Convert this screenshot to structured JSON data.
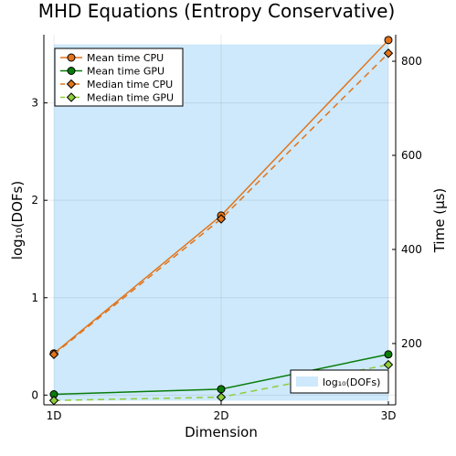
{
  "chart_data": {
    "type": "line",
    "title": "MHD Equations (Entropy Conservative)",
    "xlabel": "Dimension",
    "ylabel_left": "log₁₀(DOFs)",
    "ylabel_right": "Time (µs)",
    "categories": [
      "1D",
      "2D",
      "3D"
    ],
    "ylim_left": [
      -0.1,
      3.7
    ],
    "yticks_left": [
      0,
      1,
      2,
      3
    ],
    "ylim_right": [
      69.7,
      856.4
    ],
    "yticks_right": [
      200,
      400,
      600,
      800
    ],
    "area_series": {
      "name": "log₁₀(DOFs)",
      "axis": "left",
      "values": [
        3.6,
        3.6,
        3.6
      ],
      "color": "#cde9fb"
    },
    "series": [
      {
        "name": "Mean time CPU",
        "axis": "right",
        "values": [
          179,
          472,
          845
        ],
        "color": "#e2741b",
        "dash": "solid",
        "marker": "circle"
      },
      {
        "name": "Mean time GPU",
        "axis": "right",
        "values": [
          92,
          103,
          177
        ],
        "color": "#087c08",
        "dash": "solid",
        "marker": "circle"
      },
      {
        "name": "Median time CPU",
        "axis": "right",
        "values": [
          177,
          465,
          817
        ],
        "color": "#e2741b",
        "dash": "dashed",
        "marker": "diamond"
      },
      {
        "name": "Median time GPU",
        "axis": "right",
        "values": [
          79,
          86,
          155
        ],
        "color": "#8fcd3c",
        "dash": "dashed",
        "marker": "diamond"
      }
    ],
    "legend_position": "top-left",
    "area_legend_position": "bottom-right",
    "grid": true
  }
}
